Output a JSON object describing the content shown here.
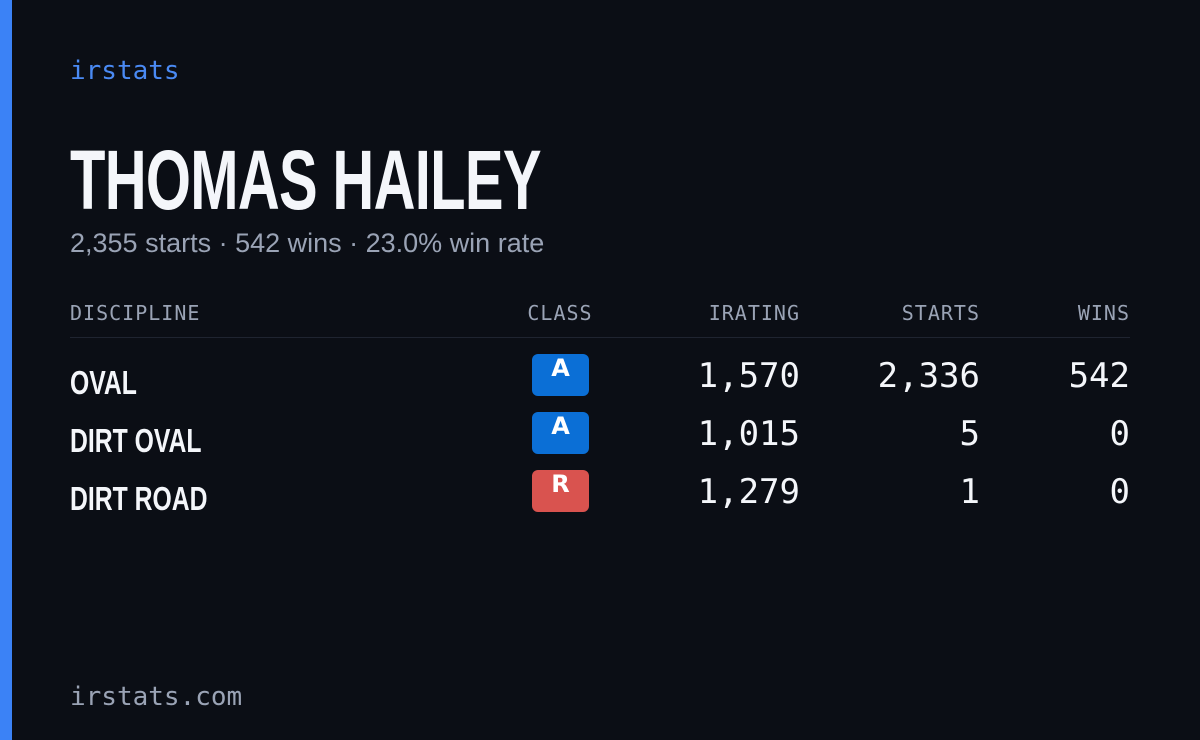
{
  "brand": "irstats",
  "driver": {
    "name": "THOMAS HAILEY",
    "summary": "2,355 starts · 542 wins · 23.0% win rate"
  },
  "table": {
    "headers": [
      "DISCIPLINE",
      "CLASS",
      "IRATING",
      "STARTS",
      "WINS"
    ],
    "rows": [
      {
        "discipline": "OVAL",
        "class": "A",
        "class_color": "#0b6fd6",
        "irating": "1,570",
        "starts": "2,336",
        "wins": "542"
      },
      {
        "discipline": "DIRT OVAL",
        "class": "A",
        "class_color": "#0b6fd6",
        "irating": "1,015",
        "starts": "5",
        "wins": "0"
      },
      {
        "discipline": "DIRT ROAD",
        "class": "R",
        "class_color": "#d9534f",
        "irating": "1,279",
        "starts": "1",
        "wins": "0"
      }
    ]
  },
  "footer": "irstats.com"
}
